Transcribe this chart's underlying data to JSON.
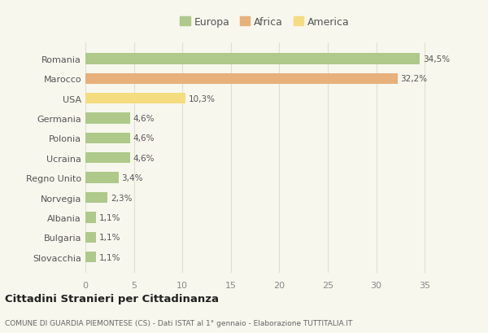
{
  "categories": [
    "Romania",
    "Marocco",
    "USA",
    "Germania",
    "Polonia",
    "Ucraina",
    "Regno Unito",
    "Norvegia",
    "Albania",
    "Bulgaria",
    "Slovacchia"
  ],
  "values": [
    34.5,
    32.2,
    10.3,
    4.6,
    4.6,
    4.6,
    3.4,
    2.3,
    1.1,
    1.1,
    1.1
  ],
  "labels": [
    "34,5%",
    "32,2%",
    "10,3%",
    "4,6%",
    "4,6%",
    "4,6%",
    "3,4%",
    "2,3%",
    "1,1%",
    "1,1%",
    "1,1%"
  ],
  "colors": [
    "#aec98a",
    "#e8b07a",
    "#f5dc80",
    "#aec98a",
    "#aec98a",
    "#aec98a",
    "#aec98a",
    "#aec98a",
    "#aec98a",
    "#aec98a",
    "#aec98a"
  ],
  "legend": [
    {
      "label": "Europa",
      "color": "#aec98a"
    },
    {
      "label": "Africa",
      "color": "#e8b07a"
    },
    {
      "label": "America",
      "color": "#f5dc80"
    }
  ],
  "xlim": [
    0,
    37
  ],
  "xticks": [
    0,
    5,
    10,
    15,
    20,
    25,
    30,
    35
  ],
  "title": "Cittadini Stranieri per Cittadinanza",
  "subtitle": "COMUNE DI GUARDIA PIEMONTESE (CS) - Dati ISTAT al 1° gennaio - Elaborazione TUTTITALIA.IT",
  "background_color": "#f7f7ee",
  "grid_color": "#e0e0d0"
}
